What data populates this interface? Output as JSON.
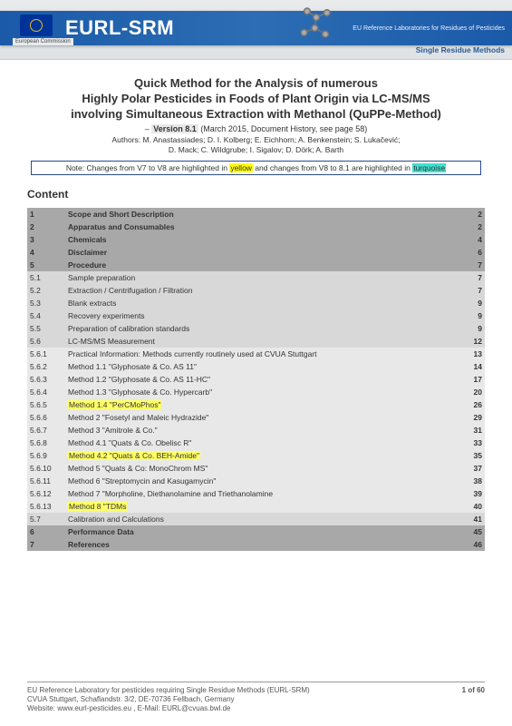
{
  "banner": {
    "ec_label": "European\nCommission",
    "logo_text": "EURL-SRM",
    "sub1": "EU Reference Laboratories for Residues of Pesticides",
    "sub2": "Single Residue Methods"
  },
  "title_l1": "Quick Method for the Analysis of numerous",
  "title_l2": "Highly Polar Pesticides in Foods of Plant Origin via LC-MS/MS",
  "title_l3": "involving Simultaneous Extraction with Methanol (QuPPe-Method)",
  "version_label": "Version 8.1",
  "version_rest": " (March 2015, Document History, see page 58)",
  "authors_l1": "Authors: M. Anastassiades; D. I. Kolberg; E. Eichhorn; A. Benkenstein; S. Lukačević;",
  "authors_l2": "D. Mack; C. Wildgrube; I. Sigalov; D. Dörk; A. Barth",
  "note_pre": "Note: Changes from V7 to V8 are highlighted in ",
  "note_yellow": "yellow",
  "note_mid": " and changes from V8 to 8.1 are highlighted in ",
  "note_turq": "turquoise",
  "content_heading": "Content",
  "toc": [
    {
      "n": "1",
      "t": "Scope and Short Description",
      "p": "2",
      "lvl": 1
    },
    {
      "n": "2",
      "t": "Apparatus and Consumables",
      "p": "2",
      "lvl": 1
    },
    {
      "n": "3",
      "t": "Chemicals",
      "p": "4",
      "lvl": 1
    },
    {
      "n": "4",
      "t": "Disclaimer",
      "p": "6",
      "lvl": 1
    },
    {
      "n": "5",
      "t": "Procedure",
      "p": "7",
      "lvl": 1
    },
    {
      "n": "5.1",
      "t": "Sample preparation",
      "p": "7",
      "lvl": 2
    },
    {
      "n": "5.2",
      "t": "Extraction / Centrifugation / Filtration",
      "p": "7",
      "lvl": 2
    },
    {
      "n": "5.3",
      "t": "Blank extracts",
      "p": "9",
      "lvl": 2
    },
    {
      "n": "5.4",
      "t": "Recovery experiments",
      "p": "9",
      "lvl": 2
    },
    {
      "n": "5.5",
      "t": "Preparation of calibration standards",
      "p": "9",
      "lvl": 2
    },
    {
      "n": "5.6",
      "t": "LC-MS/MS Measurement",
      "p": "12",
      "lvl": 2
    },
    {
      "n": "5.6.1",
      "t": "Practical Information: Methods currently routinely used at CVUA Stuttgart",
      "p": "13",
      "lvl": 3
    },
    {
      "n": "5.6.2",
      "t": "Method 1.1 \"Glyphosate & Co. AS 11\"",
      "p": "14",
      "lvl": 3
    },
    {
      "n": "5.6.3",
      "t": "Method 1.2 \"Glyphosate & Co. AS 11-HC\"",
      "p": "17",
      "lvl": 3
    },
    {
      "n": "5.6.4",
      "t": "Method 1.3 \"Glyphosate & Co. Hypercarb\"",
      "p": "20",
      "lvl": 3
    },
    {
      "n": "5.6.5",
      "t": "Method 1.4 \"PerCMoPhos\"",
      "p": "26",
      "lvl": 3,
      "hl": true
    },
    {
      "n": "5.6.6",
      "t": "Method 2 \"Fosetyl and Maleic Hydrazide\"",
      "p": "29",
      "lvl": 3
    },
    {
      "n": "5.6.7",
      "t": "Method 3 \"Amitrole & Co.\"",
      "p": "31",
      "lvl": 3
    },
    {
      "n": "5.6.8",
      "t": "Method 4.1 \"Quats & Co. Obelisc R\"",
      "p": "33",
      "lvl": 3
    },
    {
      "n": "5.6.9",
      "t": "Method 4.2 \"Quats & Co. BEH-Amide\"",
      "p": "35",
      "lvl": 3,
      "hl": true
    },
    {
      "n": "5.6.10",
      "t": "Method 5 \"Quats & Co: MonoChrom MS\"",
      "p": "37",
      "lvl": 3
    },
    {
      "n": "5.6.11",
      "t": "Method 6 \"Streptomycin and Kasugamycin\"",
      "p": "38",
      "lvl": 3
    },
    {
      "n": "5.6.12",
      "t": "Method 7 \"Morpholine, Diethanolamine and Triethanolamine",
      "p": "39",
      "lvl": 3
    },
    {
      "n": "5.6.13",
      "t": "Method 8 \"TDMs",
      "p": "40",
      "lvl": 3,
      "hl": true
    },
    {
      "n": "5.7",
      "t": "Calibration and Calculations",
      "p": "41",
      "lvl": 2
    },
    {
      "n": "6",
      "t": "Performance Data",
      "p": "45",
      "lvl": 1
    },
    {
      "n": "7",
      "t": "References",
      "p": "46",
      "lvl": 1
    }
  ],
  "footer_l1": "EU Reference Laboratory for pesticides requiring Single Residue Methods (EURL-SRM)",
  "footer_l2": "CVUA Stuttgart, Schaflandstr. 3/2, DE-70736 Fellbach, Germany",
  "footer_l3": "Website: www.eurl-pesticides.eu , E-Mail: EURL@cvuas.bwl.de",
  "footer_page": "1 of 60",
  "colors": {
    "banner_blue": "#1a5aa8",
    "toc_lvl1": "#a8a8a8",
    "toc_lvl2": "#d8d8d8",
    "toc_lvl3": "#e8e8e8",
    "highlight_yellow": "#ffff00",
    "highlight_turquoise": "#40e0d0"
  }
}
